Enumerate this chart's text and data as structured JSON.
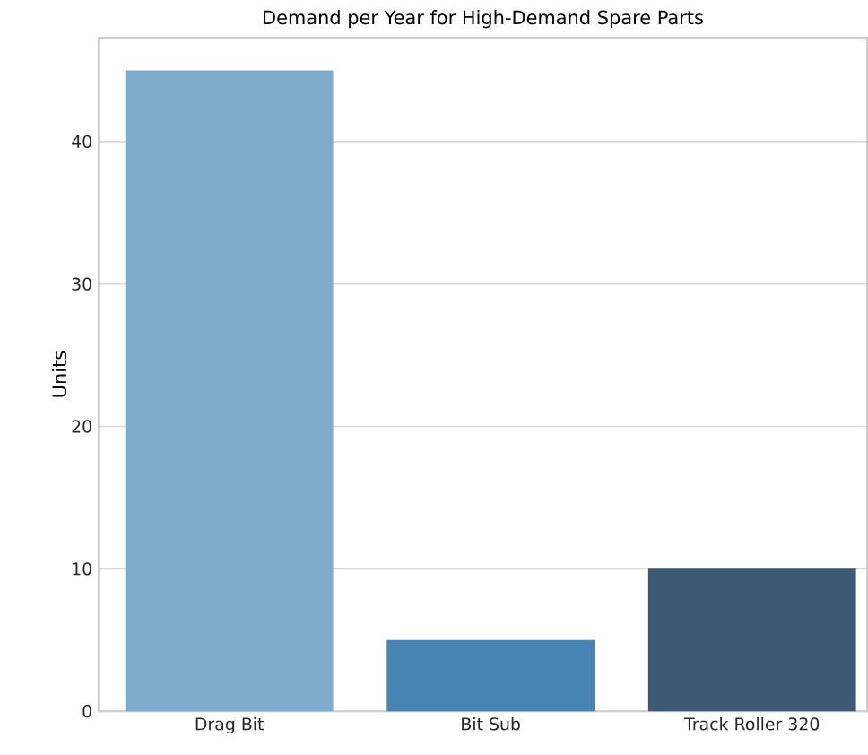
{
  "chart_data": {
    "type": "bar",
    "title": "Demand per Year for High-Demand Spare Parts",
    "ylabel": "Units",
    "categories": [
      "Drag Bit",
      "Bit Sub",
      "Track Roller 320"
    ],
    "values": [
      45,
      5,
      10
    ],
    "colors": [
      "#7eaacb",
      "#4884b3",
      "#3c5a72"
    ],
    "ylim": [
      0,
      47.3
    ],
    "yticks": [
      0,
      10,
      20,
      30,
      40
    ],
    "grid": "y"
  }
}
